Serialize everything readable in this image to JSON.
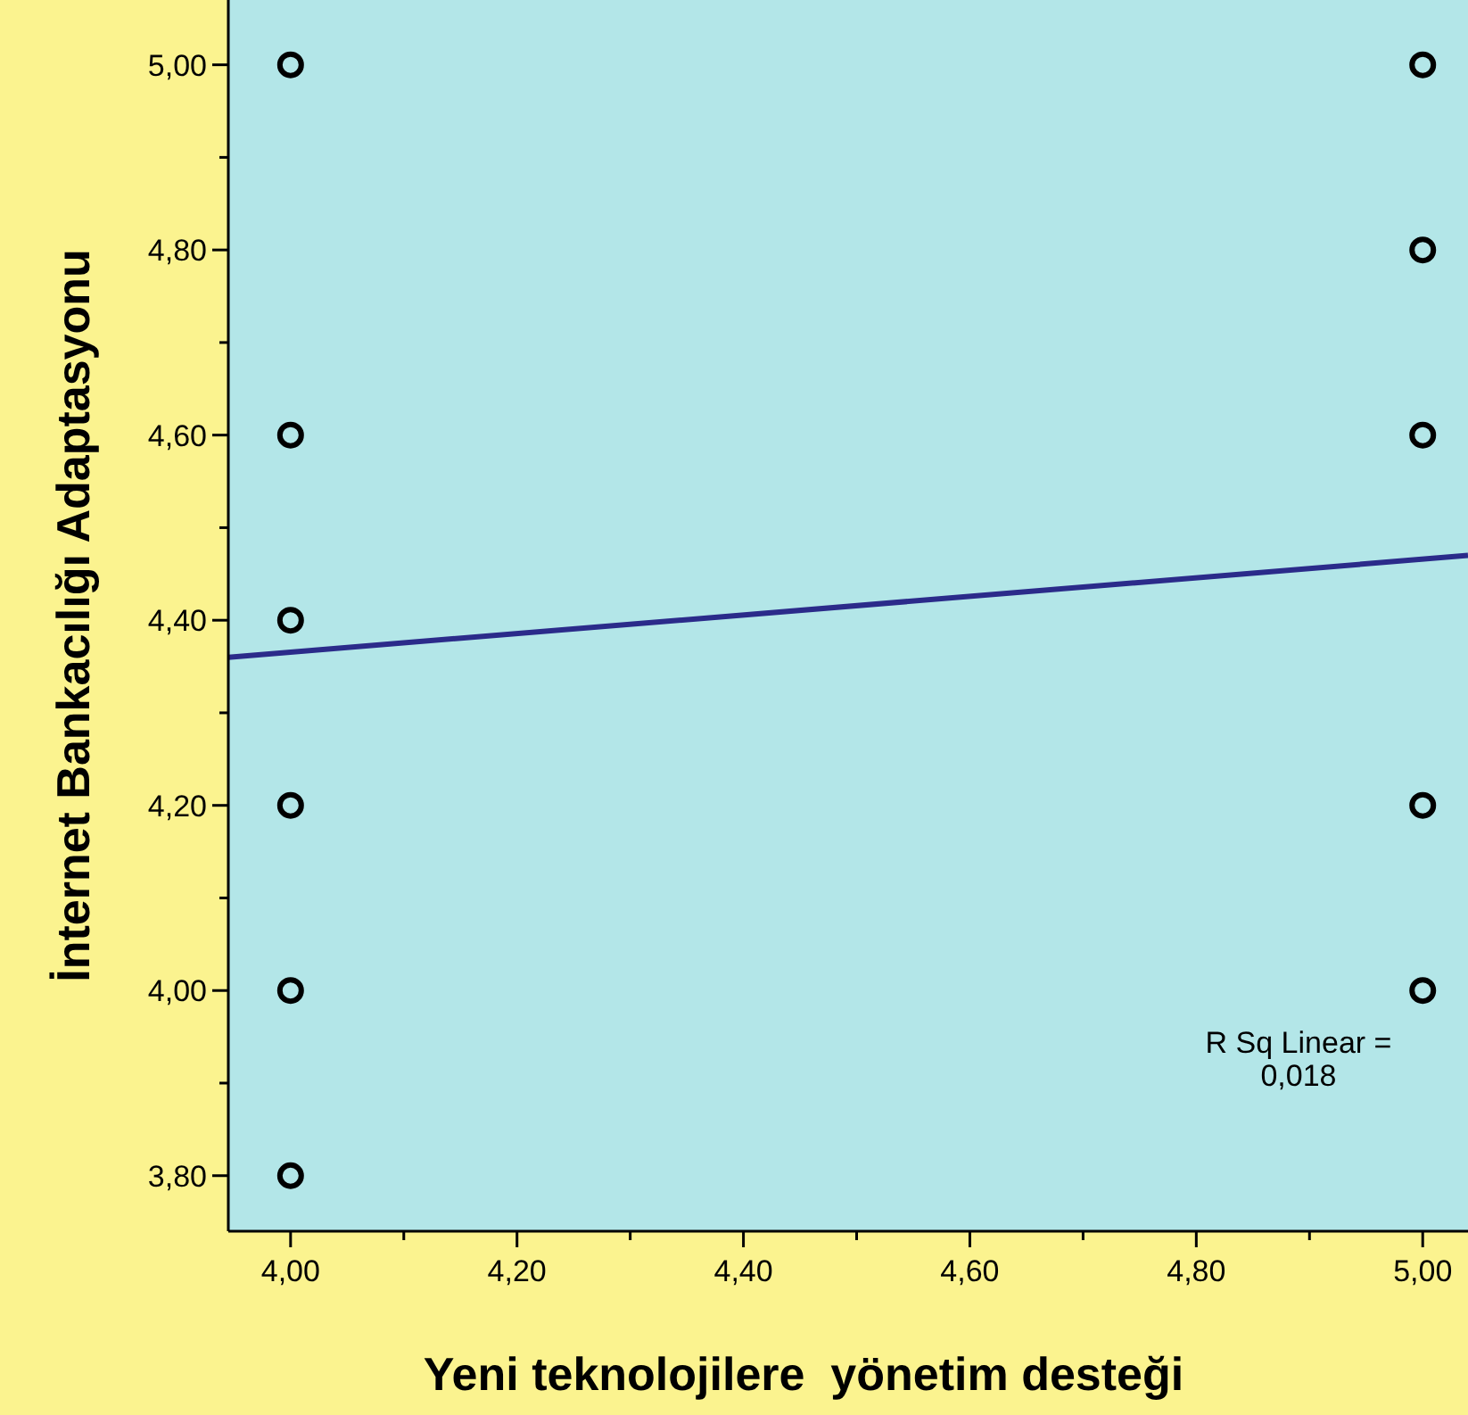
{
  "chart_data": {
    "type": "scatter",
    "xlabel": "Yeni teknolojilere  yönetim desteği",
    "ylabel": "İnternet Bankacılığı Adaptasyonu",
    "xlim": [
      3.945,
      5.04
    ],
    "ylim": [
      3.74,
      5.07
    ],
    "xticks": [
      {
        "value": 4,
        "label": "4,00"
      },
      {
        "value": 4.1,
        "label": null
      },
      {
        "value": 4.2,
        "label": "4,20"
      },
      {
        "value": 4.3,
        "label": null
      },
      {
        "value": 4.4,
        "label": "4,40"
      },
      {
        "value": 4.5,
        "label": null
      },
      {
        "value": 4.6,
        "label": "4,60"
      },
      {
        "value": 4.7,
        "label": null
      },
      {
        "value": 4.8,
        "label": "4,80"
      },
      {
        "value": 4.9,
        "label": null
      },
      {
        "value": 5,
        "label": "5,00"
      }
    ],
    "yticks": [
      {
        "value": 3.8,
        "label": "3,80"
      },
      {
        "value": 3.9,
        "label": null
      },
      {
        "value": 4,
        "label": "4,00"
      },
      {
        "value": 4.1,
        "label": null
      },
      {
        "value": 4.2,
        "label": "4,20"
      },
      {
        "value": 4.3,
        "label": null
      },
      {
        "value": 4.4,
        "label": "4,40"
      },
      {
        "value": 4.5,
        "label": null
      },
      {
        "value": 4.6,
        "label": "4,60"
      },
      {
        "value": 4.7,
        "label": null
      },
      {
        "value": 4.8,
        "label": "4,80"
      },
      {
        "value": 4.9,
        "label": null
      },
      {
        "value": 5,
        "label": "5,00"
      }
    ],
    "series": [
      {
        "color": "#000000",
        "marker": "circle",
        "x": [
          4,
          4,
          4,
          4,
          4,
          4,
          5,
          5,
          5,
          5,
          5
        ],
        "values": [
          5,
          4.6,
          4.4,
          4.2,
          4,
          3.8,
          5,
          4.8,
          4.6,
          4.2,
          4
        ]
      },
      {
        "type": "line",
        "color": "#2b2b8a",
        "marker": "none",
        "x": [
          3.945,
          5.04
        ],
        "values": [
          4.36,
          4.47
        ]
      }
    ],
    "annotations": [
      "R Sq Linear = 0,018"
    ],
    "grid": false
  }
}
